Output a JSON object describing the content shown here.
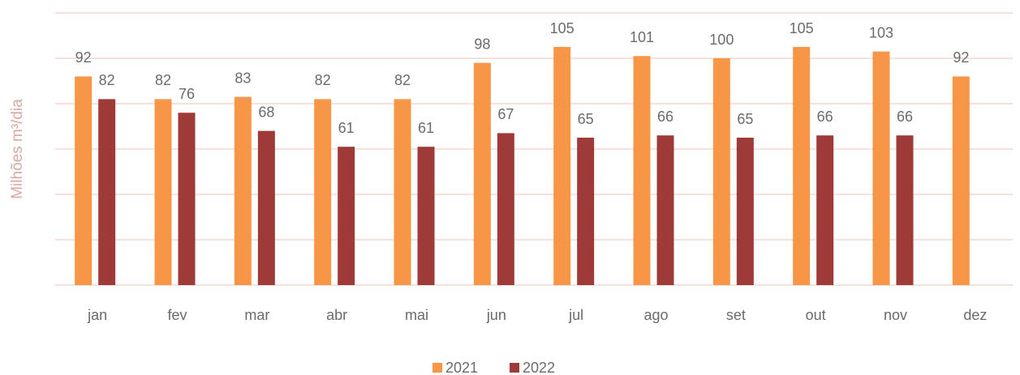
{
  "chart_data": {
    "type": "bar",
    "y_label": "Milhões m³/dia",
    "categories": [
      "jan",
      "fev",
      "mar",
      "abr",
      "mai",
      "jun",
      "jul",
      "ago",
      "set",
      "out",
      "nov",
      "dez"
    ],
    "series": [
      {
        "name": "2021",
        "color": "#f79646",
        "values": [
          92,
          82,
          83,
          82,
          82,
          98,
          105,
          101,
          100,
          105,
          103,
          92
        ]
      },
      {
        "name": "2022",
        "color": "#9e3a38",
        "values": [
          82,
          76,
          68,
          61,
          61,
          67,
          65,
          66,
          65,
          66,
          66,
          null
        ]
      }
    ],
    "ylim": [
      0,
      120
    ],
    "yticks": [
      0,
      20,
      40,
      60,
      80,
      100,
      120
    ],
    "grid": true,
    "legend": "bottom"
  }
}
